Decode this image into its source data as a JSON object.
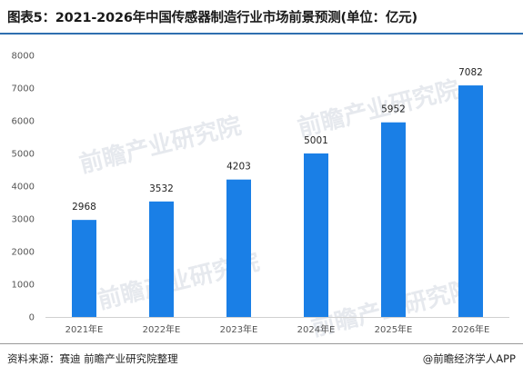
{
  "header": {
    "title": "图表5：2021-2026年中国传感器制造行业市场前景预测(单位：亿元)"
  },
  "footer": {
    "source": "资料来源：赛迪 前瞻产业研究院整理",
    "brand": "@前瞻经济学人APP"
  },
  "watermark": {
    "text": "前瞻产业研究院"
  },
  "chart_data": {
    "type": "bar",
    "title": "图表5：2021-2026年中国传感器制造行业市场前景预测(单位：亿元)",
    "categories": [
      "2021年E",
      "2022年E",
      "2023年E",
      "2024年E",
      "2025年E",
      "2026年E"
    ],
    "values": [
      2968,
      3532,
      4203,
      5001,
      5952,
      7082
    ],
    "y_ticks": [
      0,
      1000,
      2000,
      3000,
      4000,
      5000,
      6000,
      7000,
      8000
    ],
    "ylim": [
      0,
      8000
    ],
    "xlabel": "",
    "ylabel": "",
    "grid": false,
    "legend": "none",
    "bar_color": "#1a7fe6"
  }
}
